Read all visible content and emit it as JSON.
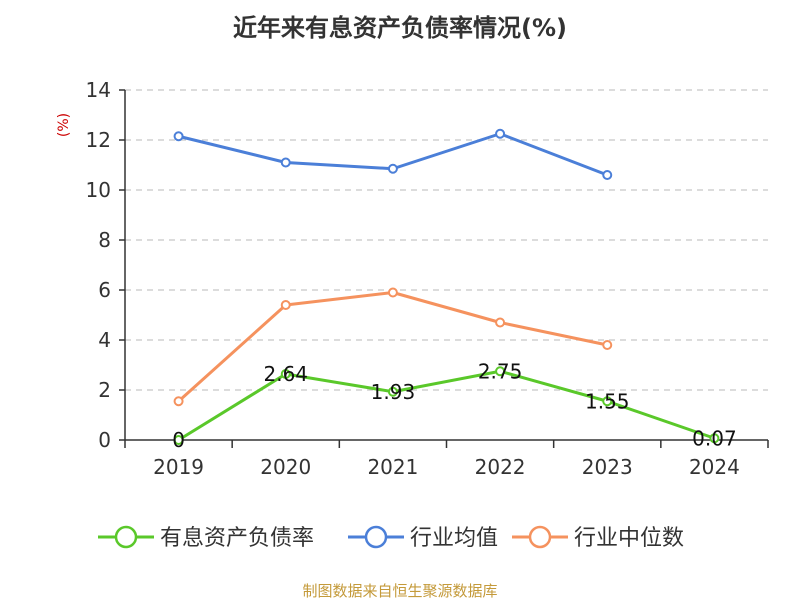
{
  "chart_data": {
    "type": "line",
    "title": "近年来有息资产负债率情况(%)",
    "ylabel": "(%)",
    "ylim": [
      0,
      14
    ],
    "yticks": [
      0,
      2,
      4,
      6,
      8,
      10,
      12,
      14
    ],
    "categories": [
      "2019",
      "2020",
      "2021",
      "2022",
      "2023",
      "2024"
    ],
    "grid": true,
    "legend_position": "bottom",
    "series": [
      {
        "name": "有息资产负债率",
        "color": "#5ac82a",
        "values": [
          0,
          2.64,
          1.93,
          2.75,
          1.55,
          0.07
        ],
        "labels": [
          "0",
          "2.64",
          "1.93",
          "2.75",
          "1.55",
          "0.07"
        ]
      },
      {
        "name": "行业均值",
        "color": "#4b7fd8",
        "values": [
          12.15,
          11.1,
          10.85,
          12.25,
          10.6,
          null
        ]
      },
      {
        "name": "行业中位数",
        "color": "#f5925e",
        "values": [
          1.55,
          5.4,
          5.9,
          4.7,
          3.8,
          null
        ]
      }
    ]
  },
  "source": "制图数据来自恒生聚源数据库"
}
